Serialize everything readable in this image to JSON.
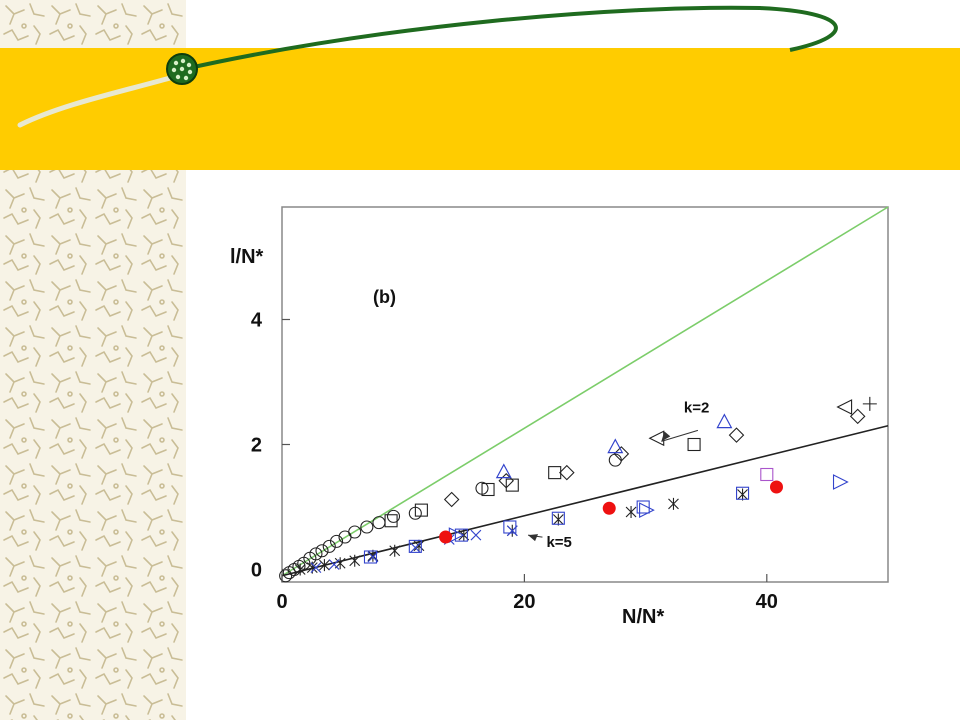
{
  "theme": {
    "banner_color": "#ffcc00",
    "sidebar_color": "#f7f3e6",
    "orbit_color": "#1f6b1f",
    "reference_line_color": "#7ccd6a",
    "fit_line_color": "#222222",
    "marker_red": "#ee1111",
    "marker_blue": "#3344cc",
    "marker_black": "#222222",
    "marker_purple": "#aa55cc"
  },
  "decor": {
    "bead_icon": "green-bead-icon"
  },
  "chart_data": {
    "type": "scatter",
    "panel_label": "(b)",
    "xlabel": "N/N*",
    "ylabel": "l/N*",
    "xlim": [
      0,
      50
    ],
    "ylim": [
      -0.2,
      5.8
    ],
    "xticks": [
      0,
      20,
      40
    ],
    "yticks": [
      0,
      2,
      4
    ],
    "grid": false,
    "annotations": [
      {
        "text": "k=2",
        "at": [
          32.5,
          2.45
        ]
      },
      {
        "text": "k=5",
        "at": [
          20.5,
          0.55
        ]
      }
    ],
    "lines": [
      {
        "id": "green",
        "x": [
          0,
          50
        ],
        "y": [
          -0.1,
          5.8
        ]
      },
      {
        "id": "fit",
        "x": [
          0,
          50
        ],
        "y": [
          -0.1,
          2.3
        ]
      }
    ],
    "series": [
      {
        "marker": "circle",
        "color": "black",
        "x": [
          0.3,
          0.6,
          1.0,
          1.4,
          1.8,
          2.3,
          2.8,
          3.3,
          3.9,
          4.5,
          5.2,
          6.0,
          7.0,
          8.0,
          9.2,
          11.0,
          16.5,
          27.5
        ],
        "y": [
          -0.1,
          -0.05,
          0.0,
          0.05,
          0.1,
          0.18,
          0.25,
          0.3,
          0.37,
          0.45,
          0.52,
          0.6,
          0.68,
          0.75,
          0.85,
          0.9,
          1.3,
          1.75
        ]
      },
      {
        "marker": "square",
        "color": "black",
        "x": [
          9.0,
          11.5,
          17.0,
          19.0,
          22.5,
          34.0
        ],
        "y": [
          0.78,
          0.95,
          1.28,
          1.35,
          1.55,
          2.0
        ]
      },
      {
        "marker": "diamond",
        "color": "black",
        "x": [
          14.0,
          18.5,
          23.5,
          28.0,
          37.5,
          47.5
        ],
        "y": [
          1.12,
          1.42,
          1.55,
          1.85,
          2.15,
          2.45
        ]
      },
      {
        "marker": "triangle-left",
        "color": "black",
        "x": [
          31.0,
          46.5
        ],
        "y": [
          2.1,
          2.6
        ]
      },
      {
        "marker": "plus",
        "color": "black",
        "x": [
          48.5
        ],
        "y": [
          2.65
        ]
      },
      {
        "marker": "triangle-up",
        "color": "blue",
        "x": [
          18.3,
          27.5,
          36.5
        ],
        "y": [
          1.55,
          1.95,
          2.35
        ]
      },
      {
        "marker": "asterisk",
        "color": "black",
        "x": [
          1.5,
          2.5,
          3.5,
          4.8,
          6.0,
          7.5,
          9.3,
          11.3,
          15.0,
          19.0,
          22.8,
          28.8,
          32.3,
          38.0
        ],
        "y": [
          0.0,
          0.03,
          0.07,
          0.1,
          0.14,
          0.22,
          0.3,
          0.38,
          0.55,
          0.62,
          0.8,
          0.92,
          1.05,
          1.2
        ]
      },
      {
        "marker": "x",
        "color": "blue",
        "x": [
          2.8,
          4.3,
          7.5,
          11.0,
          13.8,
          16.0,
          19.0
        ],
        "y": [
          0.03,
          0.08,
          0.2,
          0.35,
          0.48,
          0.55,
          0.62
        ]
      },
      {
        "marker": "square",
        "color": "blue",
        "x": [
          7.3,
          11.0,
          14.8,
          18.8,
          22.8,
          29.8,
          38.0
        ],
        "y": [
          0.2,
          0.37,
          0.55,
          0.68,
          0.82,
          1.0,
          1.22
        ]
      },
      {
        "marker": "triangle-right",
        "color": "blue",
        "x": [
          14.3,
          30.0,
          46.0
        ],
        "y": [
          0.55,
          0.95,
          1.4
        ]
      },
      {
        "marker": "square",
        "color": "purple",
        "x": [
          40.0
        ],
        "y": [
          1.52
        ]
      },
      {
        "marker": "filled-circle",
        "color": "red",
        "x": [
          13.5,
          27.0,
          40.8
        ],
        "y": [
          0.52,
          0.98,
          1.32
        ]
      }
    ]
  }
}
